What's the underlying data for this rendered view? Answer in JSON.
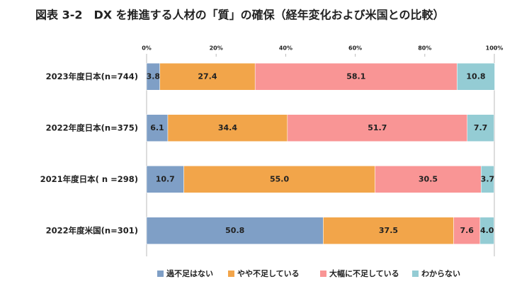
{
  "chart_data": {
    "type": "bar",
    "orientation": "horizontal",
    "stacked": true,
    "title": "図表 3-2　DX を推進する人材の「質」の確保（経年変化および米国との比較）",
    "categories": [
      "2023年度日本(n=744)",
      "2022年度日本(n=375)",
      "2021年度日本( n =298)",
      "2022年度米国(n=301)"
    ],
    "series": [
      {
        "name": "過不足はない",
        "color": "#7f9fc6",
        "values": [
          3.8,
          6.1,
          10.7,
          50.8
        ],
        "value_labels": [
          "3.8",
          "6.1",
          "10.7",
          "50.8"
        ]
      },
      {
        "name": "やや不足している",
        "color": "#f2a54a",
        "values": [
          27.4,
          34.4,
          55.0,
          37.5
        ],
        "value_labels": [
          "27.4",
          "34.4",
          "55.0",
          "37.5"
        ]
      },
      {
        "name": "大幅に不足している",
        "color": "#f99595",
        "values": [
          58.1,
          51.7,
          30.5,
          7.6
        ],
        "value_labels": [
          "58.1",
          "51.7",
          "30.5",
          "7.6"
        ]
      },
      {
        "name": "わからない",
        "color": "#94ccd4",
        "values": [
          10.8,
          7.7,
          3.7,
          4.0
        ],
        "value_labels": [
          "10.8",
          "7.7",
          "3.7",
          "4.0"
        ]
      }
    ],
    "xlim": [
      0,
      100
    ],
    "xticks": [
      {
        "value": 0,
        "label": "0%"
      },
      {
        "value": 20,
        "label": "20%"
      },
      {
        "value": 40,
        "label": "40%"
      },
      {
        "value": 60,
        "label": "60%"
      },
      {
        "value": 80,
        "label": "80%"
      },
      {
        "value": 100,
        "label": "100%"
      }
    ],
    "grid": false,
    "legend": "bottom"
  }
}
